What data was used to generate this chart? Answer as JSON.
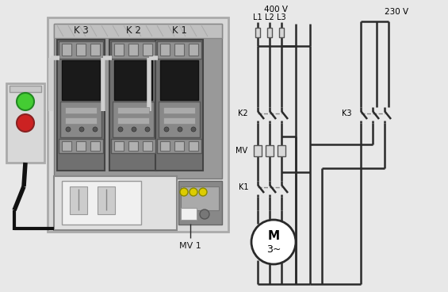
{
  "bg_color": "#e8e8e8",
  "line_color": "#2a2a2a",
  "dark_gray": "#555555",
  "mid_gray": "#888888",
  "light_gray": "#cccccc",
  "white": "#ffffff",
  "green": "#44cc33",
  "red": "#cc2222",
  "yellow": "#ddcc00",
  "label_400V": "400 V",
  "label_L1": "L1",
  "label_L2": "L2",
  "label_L3": "L3",
  "label_230V": "230 V",
  "label_K1": "K 1",
  "label_K2": "K 2",
  "label_K3": "K 3",
  "label_MV": "MV",
  "label_MV1": "MV 1",
  "label_K2_diag": "K2",
  "label_K3_diag": "K3",
  "label_K1_diag": "K1",
  "label_M": "M",
  "label_3phase": "3~",
  "contactor_labels": [
    "K 3",
    "K 2",
    "K 1"
  ]
}
